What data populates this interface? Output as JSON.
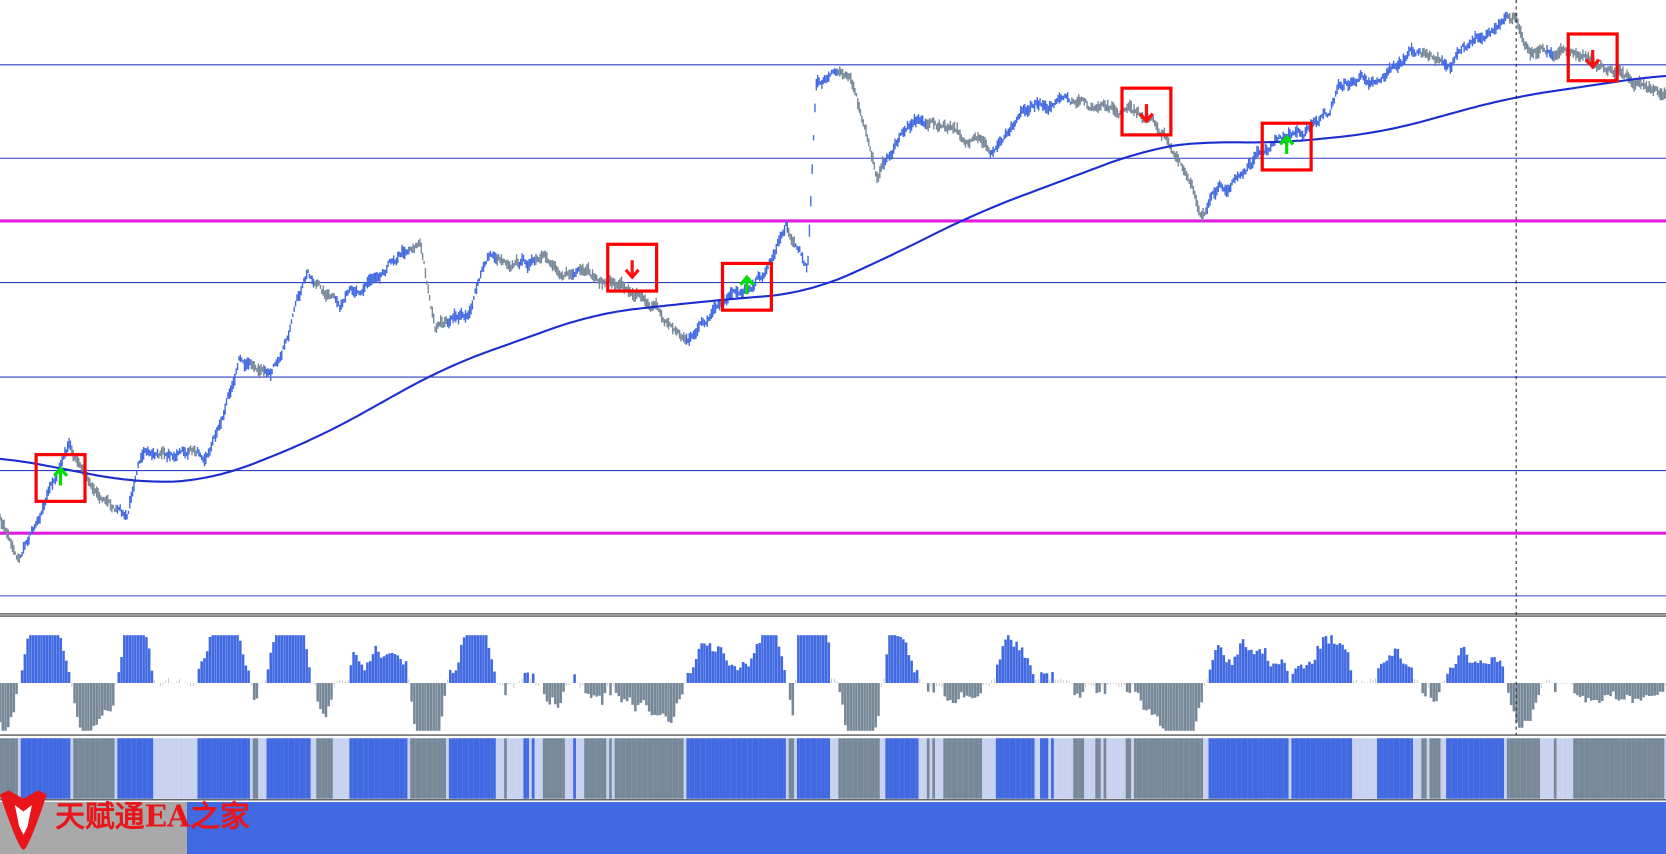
{
  "watermark": {
    "text": "天赋通EA之家"
  }
}
